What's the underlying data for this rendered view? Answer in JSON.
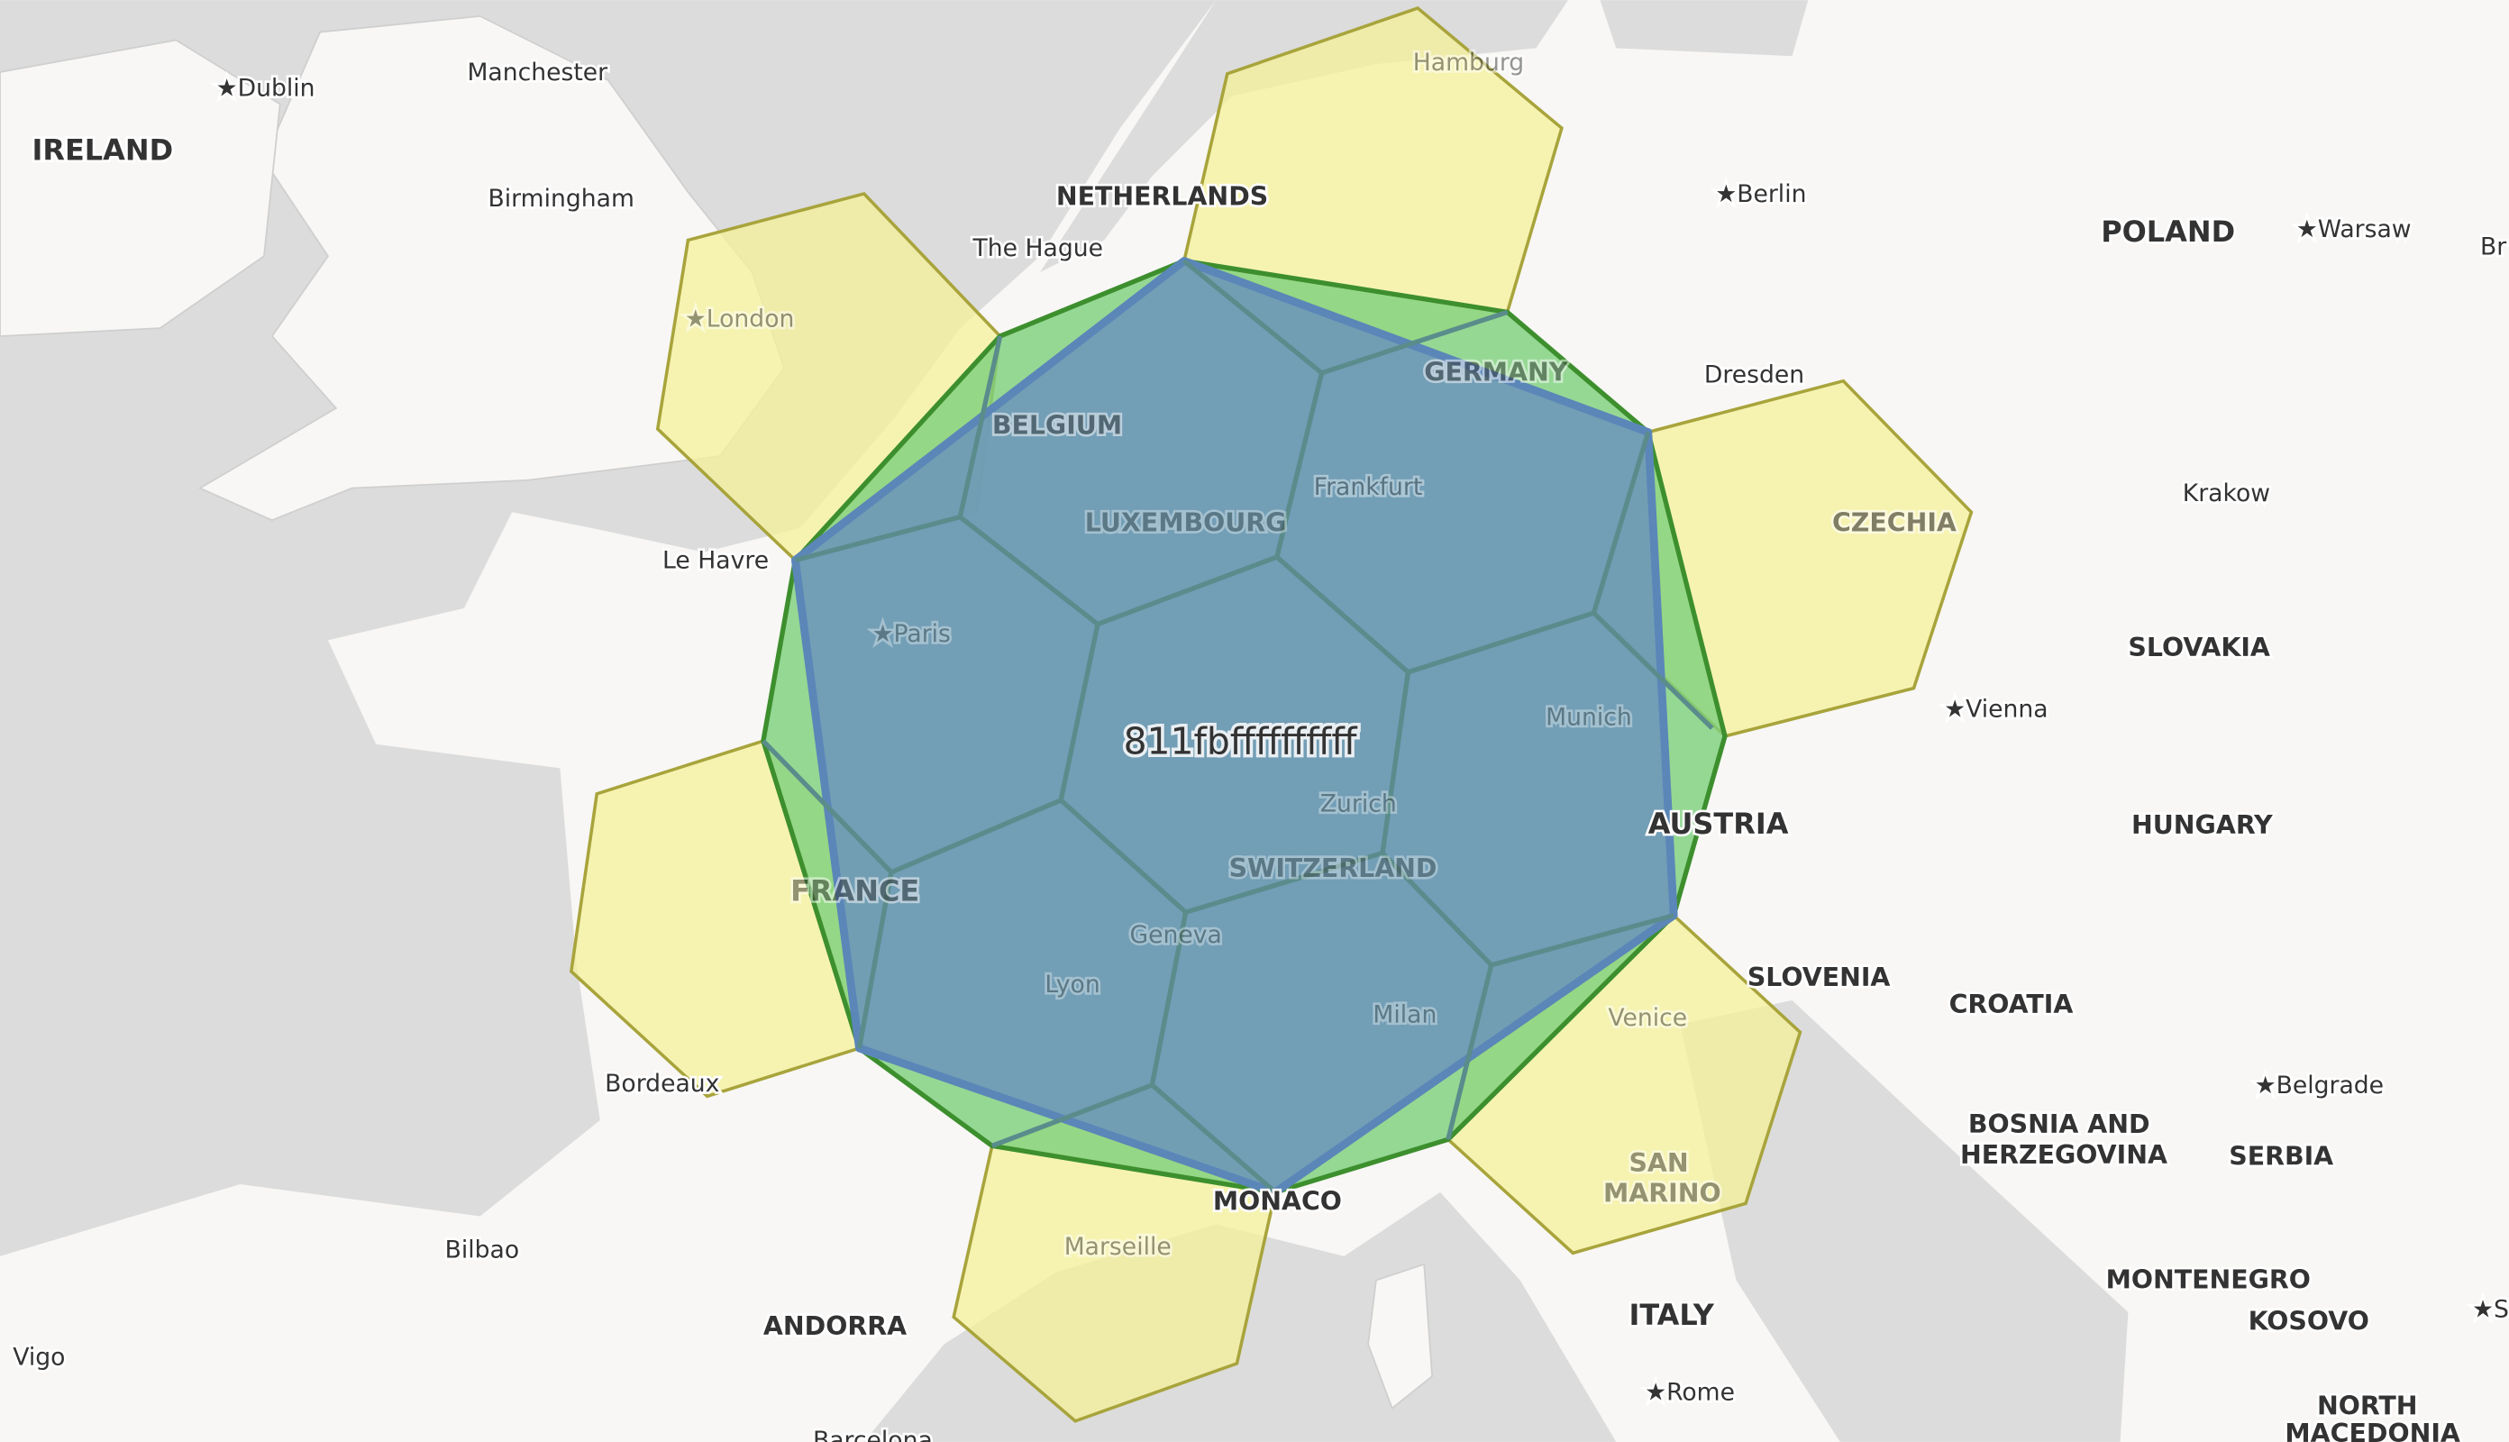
{
  "map": {
    "colors": {
      "sea": "#dcdcdc",
      "land": "#f8f7f5",
      "neighbor_fill": "#f5f19a",
      "neighbor_stroke": "#a8a43c",
      "parent_fill": "#7ccf7c",
      "parent_stroke": "#3d8f2e",
      "cell_fill": "#6f99b8",
      "cell_stroke": "#5b86b8",
      "child_stroke": "#5a8c8c"
    },
    "cell_label": "811fbffffffffff",
    "countries": [
      "IRELAND",
      "NETHERLANDS",
      "BELGIUM",
      "LUXEMBOURG",
      "GERMANY",
      "POLAND",
      "CZECHIA",
      "SLOVAKIA",
      "AUSTRIA",
      "HUNGARY",
      "FRANCE",
      "SWITZERLAND",
      "SLOVENIA",
      "CROATIA",
      "BOSNIA AND",
      "HERZEGOVINA",
      "SERBIA",
      "SAN",
      "MARINO",
      "MONACO",
      "ANDORRA",
      "ITALY",
      "MONTENEGRO",
      "KOSOVO",
      "NORTH",
      "MACEDONIA"
    ],
    "cities": [
      "Dublin",
      "Manchester",
      "Birmingham",
      "London",
      "The Hague",
      "Hamburg",
      "Berlin",
      "Warsaw",
      "Br",
      "Dresden",
      "Krakow",
      "Frankfurt",
      "Le Havre",
      "Paris",
      "Vienna",
      "Munich",
      "Zurich",
      "Geneva",
      "Lyon",
      "Milan",
      "Venice",
      "Bordeaux",
      "Marseille",
      "Bilbao",
      "Vigo",
      "Belgrade",
      "Rome",
      "Barcelona",
      "S"
    ]
  }
}
